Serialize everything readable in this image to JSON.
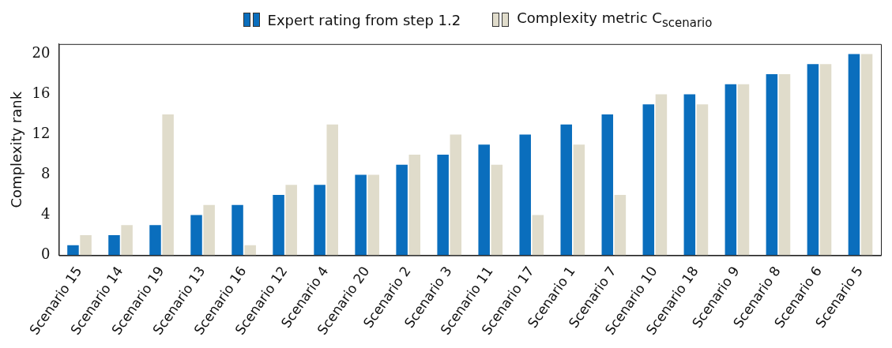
{
  "chart_data": {
    "type": "bar",
    "ylabel": "Complexity rank",
    "categories": [
      "Scenario 15",
      "Scenario 14",
      "Scenario 19",
      "Scenario 13",
      "Scenario 16",
      "Scenario 12",
      "Scenario 4",
      "Scenario 20",
      "Scenario 2",
      "Scenario 3",
      "Scenario 11",
      "Scenario 17",
      "Scenario 1",
      "Scenario 7",
      "Scenario 10",
      "Scenario 18",
      "Scenario 9",
      "Scenario 8",
      "Scenario 6",
      "Scenario 5"
    ],
    "series": [
      {
        "name": "Expert rating from step 1.2",
        "color": "#0a6ebd",
        "values": [
          1,
          2,
          3,
          4,
          5,
          6,
          7,
          8,
          9,
          10,
          11,
          12,
          13,
          14,
          15,
          16,
          17,
          18,
          19,
          20
        ]
      },
      {
        "name": "Complexity metric C$_{scenario}$",
        "color": "#e0dccb",
        "values": [
          2,
          3,
          14,
          5,
          1,
          7,
          13,
          8,
          10,
          12,
          9,
          4,
          11,
          6,
          16,
          15,
          17,
          18,
          19,
          20
        ]
      }
    ],
    "ylim": [
      0,
      21
    ],
    "yticks": [
      0,
      4,
      8,
      12,
      16,
      20
    ],
    "grid": false,
    "legend": "top"
  }
}
